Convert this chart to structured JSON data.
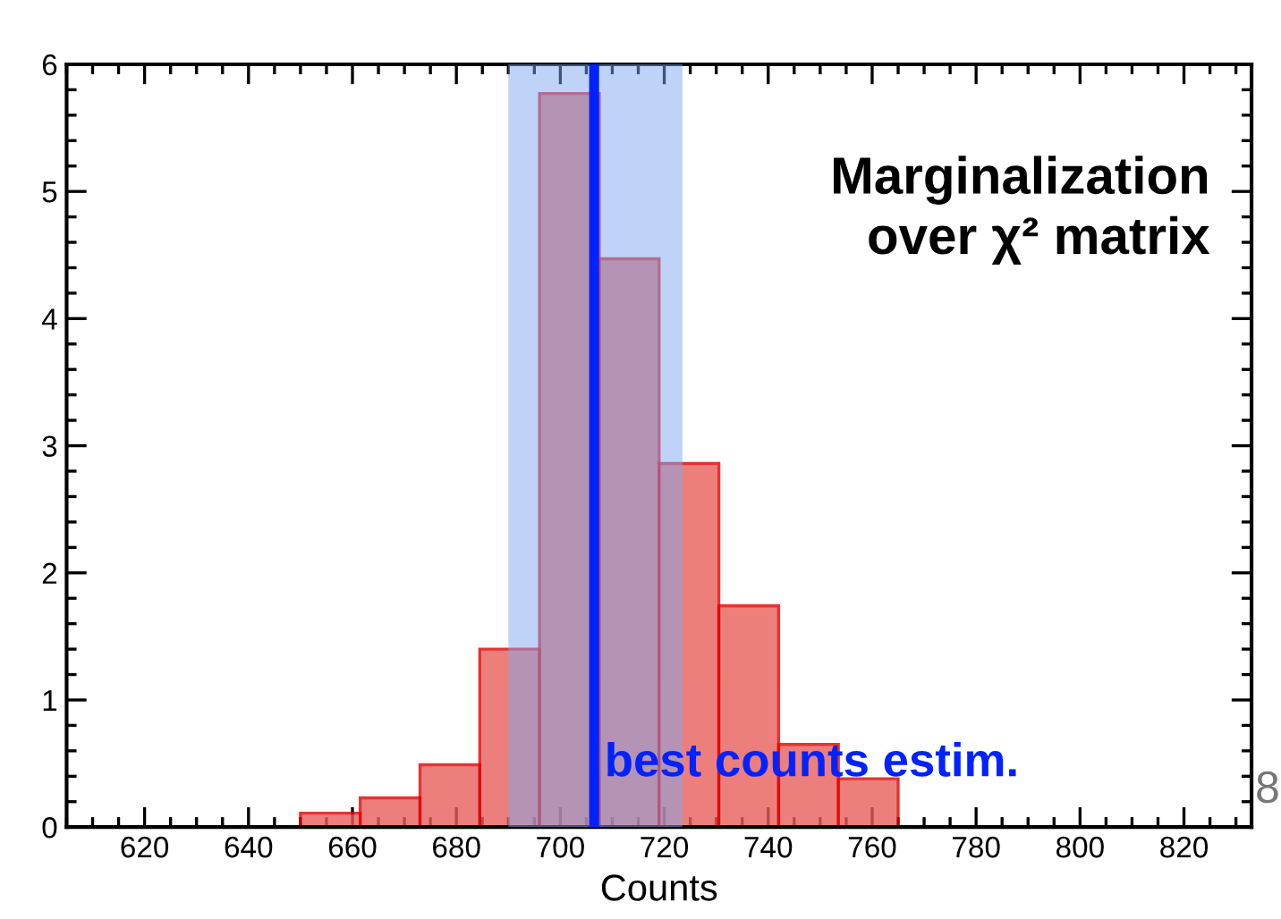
{
  "chart_data": {
    "type": "histogram",
    "xlabel": "Counts",
    "bins": [
      650,
      661.5,
      673,
      684.5,
      696,
      707.5,
      719,
      730.5,
      742,
      753.5,
      765
    ],
    "values": [
      0.11,
      0.23,
      0.49,
      1.4,
      5.77,
      4.47,
      2.86,
      1.74,
      0.65,
      0.38
    ],
    "color": "#e8605a",
    "xlim": [
      605,
      833
    ],
    "xticks": [
      620,
      640,
      660,
      680,
      700,
      720,
      740,
      760,
      780,
      800,
      820
    ],
    "ylim": [
      0,
      6
    ],
    "yticks": [
      0,
      1,
      2,
      3,
      4,
      5,
      6
    ],
    "grid": false,
    "bands": [
      {
        "axis": "x",
        "from": 690,
        "to": 723.5,
        "color": "#7da7f0"
      }
    ],
    "ref_lines": [
      {
        "axis": "x",
        "value": 706.5,
        "label": "best counts estim.",
        "color": "#0022ff",
        "line_style": "solid"
      }
    ],
    "annotations": [
      "Marginalization\nover χ² matrix",
      "8"
    ]
  }
}
